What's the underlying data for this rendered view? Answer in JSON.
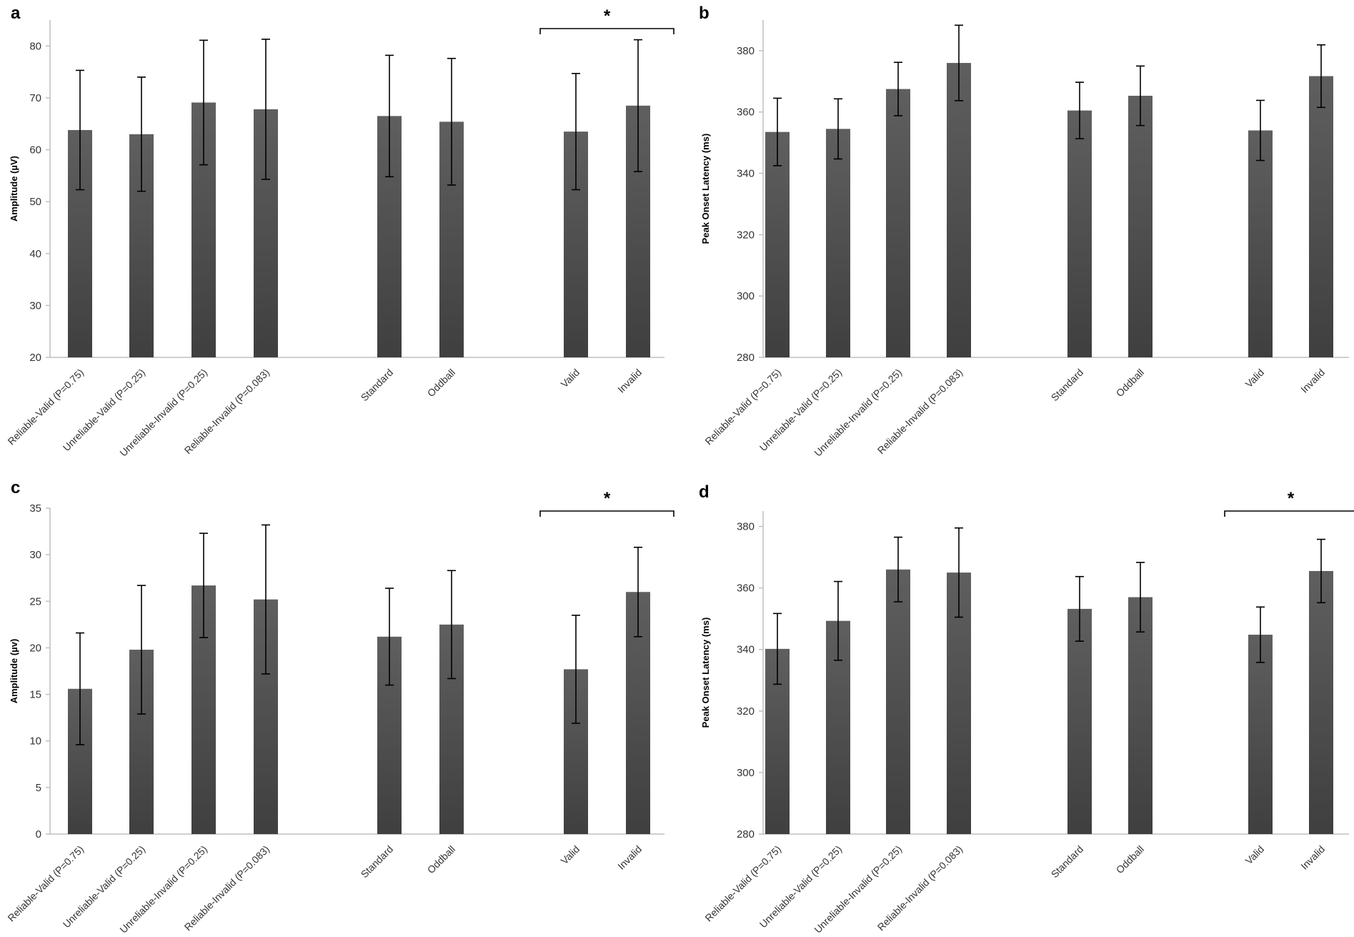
{
  "chart_data": [
    {
      "panel": "a",
      "type": "bar",
      "ylabel": "Amplitude (µV)",
      "ylim": [
        20,
        85
      ],
      "yticks": [
        20,
        30,
        40,
        50,
        60,
        70,
        80
      ],
      "categories": [
        "Reliable-Valid (P=0.75)",
        "Unreliable-Valid (P=0.25)",
        "Unreliable-Invalid (P=0.25)",
        "Reliable-Invalid (P=0.083)",
        "Standard",
        "Oddball",
        "Valid",
        "Invalid"
      ],
      "values": [
        63.8,
        63.0,
        69.1,
        67.8,
        66.5,
        65.4,
        63.5,
        68.5
      ],
      "errors": [
        11.5,
        11.0,
        12.0,
        13.5,
        11.7,
        12.2,
        11.2,
        12.7
      ],
      "significance": {
        "from": "Valid",
        "to": "Invalid",
        "label": "*"
      }
    },
    {
      "panel": "b",
      "type": "bar",
      "ylabel": "Peak Onset Latency (ms)",
      "ylim": [
        280,
        390
      ],
      "yticks": [
        280,
        300,
        320,
        340,
        360,
        380
      ],
      "categories": [
        "Reliable-Valid (P=0.75)",
        "Unreliable-Valid (P=0.25)",
        "Unreliable-Invalid (P=0.25)",
        "Reliable-Invalid (P=0.083)",
        "Standard",
        "Oddball",
        "Valid",
        "Invalid"
      ],
      "values": [
        353.5,
        354.5,
        367.5,
        376.0,
        360.5,
        365.3,
        354.0,
        371.7
      ],
      "errors": [
        11.0,
        9.8,
        8.7,
        12.3,
        9.2,
        9.7,
        9.8,
        10.2
      ]
    },
    {
      "panel": "c",
      "type": "bar",
      "ylabel": "Amplitude (µv)",
      "ylim": [
        0,
        35
      ],
      "yticks": [
        0,
        5,
        10,
        15,
        20,
        25,
        30,
        35
      ],
      "categories": [
        "Reliable-Valid (P=0.75)",
        "Unreliable-Valid (P=0.25)",
        "Unreliable-Invalid (P=0.25)",
        "Reliable-Invalid (P=0.083)",
        "Standard",
        "Oddball",
        "Valid",
        "Invalid"
      ],
      "values": [
        15.6,
        19.8,
        26.7,
        25.2,
        21.2,
        22.5,
        17.7,
        26.0
      ],
      "errors": [
        6.0,
        6.9,
        5.6,
        8.0,
        5.2,
        5.8,
        5.8,
        4.8
      ],
      "significance": {
        "from": "Valid",
        "to": "Invalid",
        "label": "*"
      }
    },
    {
      "panel": "d",
      "type": "bar",
      "ylabel": "Peak Onset Latency (ms)",
      "ylim": [
        280,
        385
      ],
      "yticks": [
        280,
        300,
        320,
        340,
        360,
        380
      ],
      "categories": [
        "Reliable-Valid (P=0.75)",
        "Unreliable-Valid (P=0.25)",
        "Unreliable-Invalid (P=0.25)",
        "Reliable-Invalid (P=0.083)",
        "Standard",
        "Oddball",
        "Valid",
        "Invalid"
      ],
      "values": [
        340.2,
        349.3,
        366.0,
        365.0,
        353.2,
        357.0,
        344.8,
        365.5
      ],
      "errors": [
        11.5,
        12.8,
        10.5,
        14.5,
        10.5,
        11.3,
        9.0,
        10.3
      ],
      "significance": {
        "from": "Valid",
        "to": "Invalid",
        "label": "*"
      }
    }
  ],
  "style": {
    "bar_color_top": "#5f5f5f",
    "bar_color_bottom": "#3f3f3f",
    "axis_color": "#bfbfbf"
  }
}
